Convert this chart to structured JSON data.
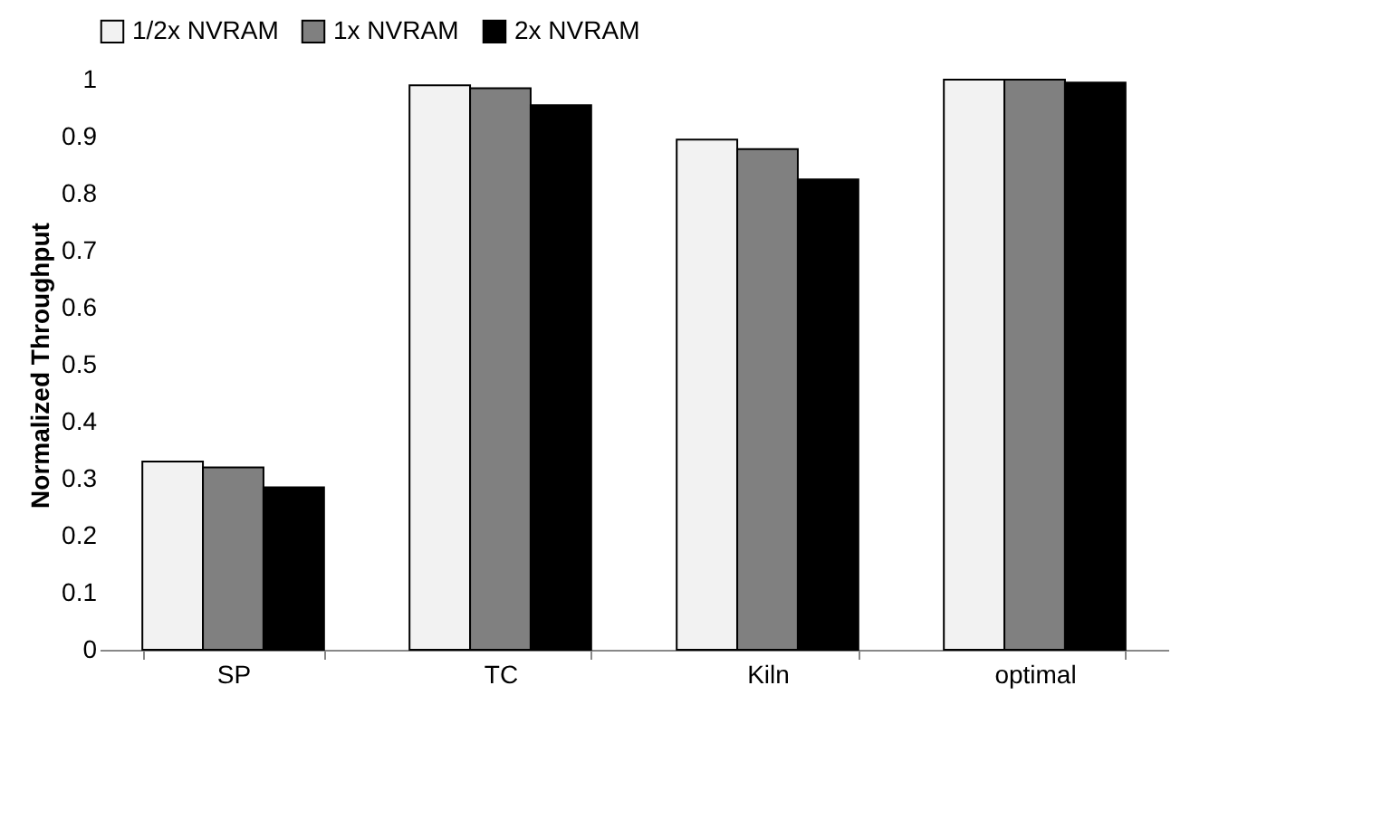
{
  "chart_data": {
    "type": "bar",
    "ylabel": "Normalized Throughput",
    "categories": [
      "SP",
      "TC",
      "Kiln",
      "optimal"
    ],
    "series": [
      {
        "name": "1/2x NVRAM",
        "color": "#f2f2f2",
        "values": [
          0.33,
          0.99,
          0.895,
          1.0
        ]
      },
      {
        "name": "1x NVRAM",
        "color": "#808080",
        "values": [
          0.32,
          0.985,
          0.878,
          1.0
        ]
      },
      {
        "name": "2x NVRAM",
        "color": "#000000",
        "values": [
          0.285,
          0.955,
          0.825,
          0.995
        ]
      }
    ],
    "ylim": [
      0,
      1
    ],
    "yticks": [
      0,
      0.1,
      0.2,
      0.3,
      0.4,
      0.5,
      0.6,
      0.7,
      0.8,
      0.9,
      1
    ],
    "grid": false,
    "legend": "top"
  }
}
